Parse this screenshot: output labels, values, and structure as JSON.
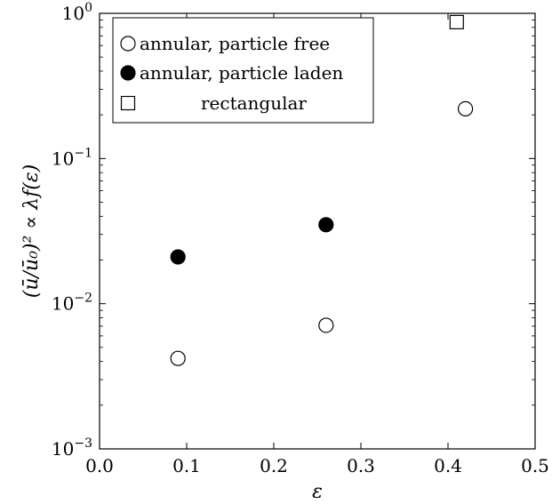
{
  "chart_data": {
    "type": "scatter",
    "title": "",
    "xlabel": "ε",
    "ylabel": "(ū/ū₀)² ∝ λf(ε)",
    "xlim": [
      0.0,
      0.5
    ],
    "ylim": [
      0.001,
      1.0
    ],
    "yscale": "log",
    "x_ticks": [
      "0.0",
      "0.1",
      "0.2",
      "0.3",
      "0.4",
      "0.5"
    ],
    "y_ticks": [
      {
        "base": "10",
        "exp": "0"
      },
      {
        "base": "10",
        "exp": "−1"
      },
      {
        "base": "10",
        "exp": "−2"
      },
      {
        "base": "10",
        "exp": "−3"
      }
    ],
    "grid": false,
    "legend_position": "top-left",
    "series": [
      {
        "name": "annular, particle free",
        "marker": "circle-open",
        "points": [
          {
            "x": 0.09,
            "y": 0.0042
          },
          {
            "x": 0.26,
            "y": 0.0071
          },
          {
            "x": 0.42,
            "y": 0.22
          }
        ]
      },
      {
        "name": "annular, particle laden",
        "marker": "circle-filled",
        "points": [
          {
            "x": 0.09,
            "y": 0.021
          },
          {
            "x": 0.26,
            "y": 0.035
          }
        ]
      },
      {
        "name": "rectangular",
        "marker": "square-open",
        "points": [
          {
            "x": 0.41,
            "y": 0.87
          }
        ]
      }
    ]
  }
}
